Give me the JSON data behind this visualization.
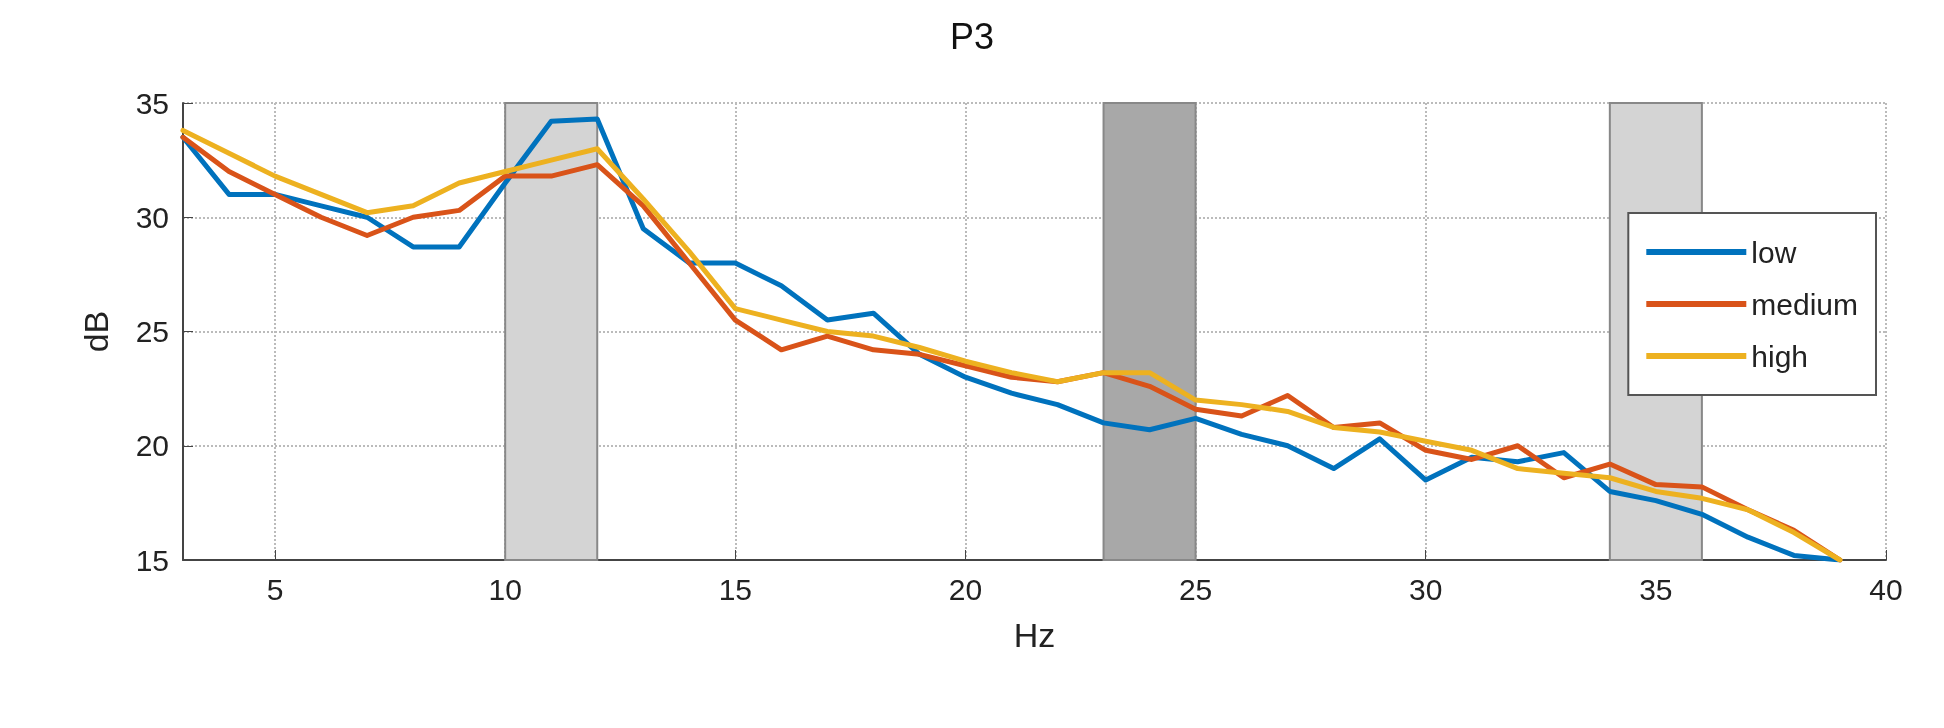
{
  "chart_data": {
    "type": "line",
    "title": "P3",
    "xlabel": "Hz",
    "ylabel": "dB",
    "x": [
      3,
      4,
      5,
      6,
      7,
      8,
      9,
      10,
      11,
      12,
      13,
      14,
      15,
      16,
      17,
      18,
      19,
      20,
      21,
      22,
      23,
      24,
      25,
      26,
      27,
      28,
      29,
      30,
      31,
      32,
      33,
      34,
      35,
      36,
      37,
      38,
      39
    ],
    "series": [
      {
        "name": "low",
        "color": "#0072bd",
        "values": [
          33.5,
          31,
          31,
          30.5,
          30,
          28.7,
          28.7,
          31.5,
          34.2,
          34.3,
          29.5,
          28,
          28,
          27,
          25.5,
          25.8,
          24,
          23,
          22.3,
          21.8,
          21,
          20.7,
          21.2,
          20.5,
          20,
          19,
          20.3,
          18.5,
          19.5,
          19.3,
          19.7,
          18,
          17.6,
          17,
          16,
          15.2,
          15
        ]
      },
      {
        "name": "medium",
        "color": "#d95319",
        "values": [
          33.5,
          32,
          31,
          30,
          29.2,
          30,
          30.3,
          31.8,
          31.8,
          32.3,
          30.5,
          28,
          25.5,
          24.2,
          24.8,
          24.2,
          24,
          23.5,
          23,
          22.8,
          23.2,
          22.6,
          21.6,
          21.3,
          22.2,
          20.8,
          21,
          19.8,
          19.4,
          20,
          18.6,
          19.2,
          18.3,
          18.2,
          17.2,
          16.3,
          15
        ]
      },
      {
        "name": "high",
        "color": "#edb120",
        "values": [
          33.8,
          32.8,
          31.8,
          31,
          30.2,
          30.5,
          31.5,
          32,
          32.5,
          33,
          30.8,
          28.5,
          26,
          25.5,
          25,
          24.8,
          24.3,
          23.7,
          23.2,
          22.8,
          23.2,
          23.2,
          22,
          21.8,
          21.5,
          20.8,
          20.6,
          20.2,
          19.8,
          19,
          18.8,
          18.6,
          18,
          17.7,
          17.2,
          16.2,
          15
        ]
      }
    ],
    "xlim": [
      3,
      40
    ],
    "xticks": [
      5,
      10,
      15,
      20,
      25,
      30,
      35,
      40
    ],
    "ylim": [
      15,
      35
    ],
    "yticks": [
      15,
      20,
      25,
      30,
      35
    ],
    "bands": [
      {
        "axis": "x",
        "from": 10,
        "to": 12,
        "color": "#d4d4d4"
      },
      {
        "axis": "x",
        "from": 23,
        "to": 25,
        "color": "#a8a8a8"
      },
      {
        "axis": "x",
        "from": 34,
        "to": 36,
        "color": "#d4d4d4"
      }
    ],
    "grid": true,
    "legend": "top right",
    "marker": "none",
    "line_style": "solid"
  }
}
